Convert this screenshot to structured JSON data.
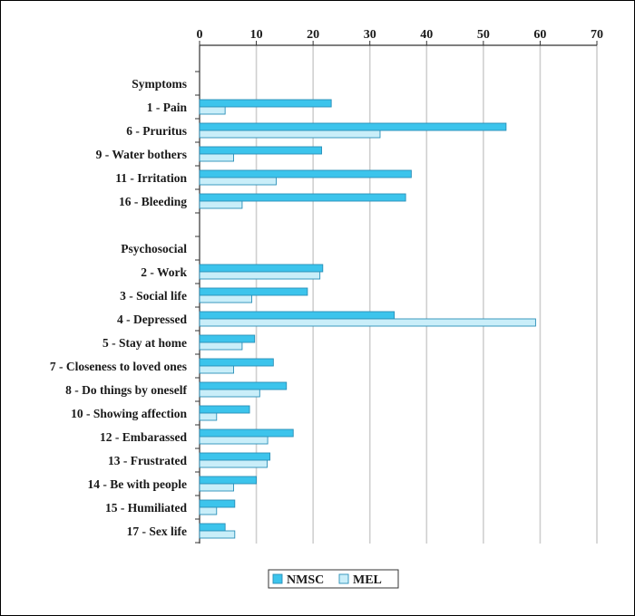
{
  "chart_data": {
    "type": "bar",
    "orientation": "horizontal",
    "title": "",
    "xlabel": "",
    "ylabel": "",
    "xlim": [
      0,
      70
    ],
    "x_ticks": [
      0,
      10,
      20,
      30,
      40,
      50,
      60,
      70
    ],
    "x_axis_position": "top",
    "grid": "vertical",
    "legend_position": "bottom-center",
    "categories": [
      "Symptoms",
      "1 - Pain",
      "6 - Pruritus",
      "9 - Water bothers",
      "11 - Irritation",
      "16 - Bleeding",
      "",
      "Psychosocial",
      "2 - Work",
      "3 - Social life",
      "4 - Depressed",
      "5 - Stay at home",
      "7 - Closeness to loved ones",
      "8 - Do things by oneself",
      "10 - Showing affection",
      "12 - Embarassed",
      "13 - Frustrated",
      "14 - Be with people",
      "15 - Humiliated",
      "17 - Sex life"
    ],
    "series": [
      {
        "name": "NMSC",
        "color": "#3cc4ec",
        "values": [
          null,
          23.2,
          54,
          21.5,
          37.3,
          36.3,
          null,
          null,
          21.7,
          19,
          34.3,
          9.7,
          13,
          15.3,
          8.8,
          16.5,
          12.4,
          10,
          6.2,
          4.5
        ]
      },
      {
        "name": "MEL",
        "color": "#c9eef9",
        "values": [
          null,
          4.5,
          31.8,
          6,
          13.5,
          7.5,
          null,
          null,
          21.2,
          9.2,
          59.2,
          7.5,
          6,
          10.6,
          3,
          12,
          11.9,
          6,
          3,
          6.2
        ]
      }
    ]
  }
}
